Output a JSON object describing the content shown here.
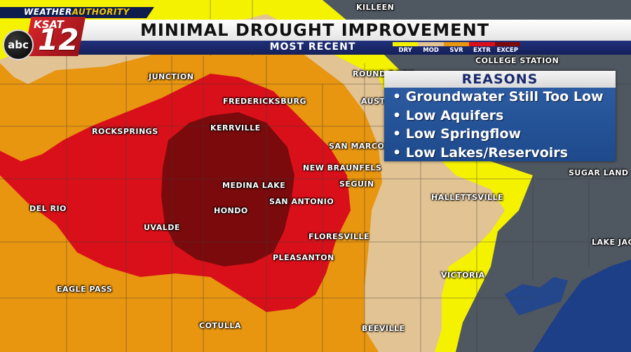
{
  "banner": {
    "title": "MINIMAL DROUGHT IMPROVEMENT",
    "subtitle": "MOST RECENT"
  },
  "branding": {
    "weather_prefix": "WEATHER",
    "weather_suffix": "AUTHORITY",
    "network": "abc",
    "station": "KSAT",
    "channel": "12"
  },
  "legend": [
    {
      "label": "DRY",
      "color": "#f5f200"
    },
    {
      "label": "MOD",
      "color": "#e2c393"
    },
    {
      "label": "SVR",
      "color": "#e8950f"
    },
    {
      "label": "EXTR",
      "color": "#d9101a"
    },
    {
      "label": "EXCEP",
      "color": "#7a0a0c"
    }
  ],
  "reasons": {
    "heading": "REASONS",
    "items": [
      "• Groundwater Still Too Low",
      "• Low Aquifers",
      "• Low Springflow",
      "• Low Lakes/Reservoirs"
    ]
  },
  "cities": {
    "killeen": "KILLEEN",
    "college_station": "COLLEGE STATION",
    "junction": "JUNCTION",
    "round_rock": "ROUND ROCK",
    "fredericksburg": "FREDERICKSBURG",
    "austin": "AUSTIN",
    "kerrville": "KERRVILLE",
    "rocksprings": "ROCKSPRINGS",
    "san_marcos": "SAN MARCOS",
    "new_braunfels": "NEW BRAUNFELS",
    "sugar_land": "SUGAR LAND",
    "medina_lake": "MEDINA LAKE",
    "seguin": "SEGUIN",
    "hallettsville": "HALLETTSVILLE",
    "del_rio": "DEL RIO",
    "hondo": "HONDO",
    "san_antonio": "SAN ANTONIO",
    "uvalde": "UVALDE",
    "floresville": "FLORESVILLE",
    "lake_jackson": "LAKE JAC",
    "pleasanton": "PLEASANTON",
    "victoria": "VICTORIA",
    "eagle_pass": "EAGLE PASS",
    "cotulla": "COTULLA",
    "beeville": "BEEVILLE"
  }
}
